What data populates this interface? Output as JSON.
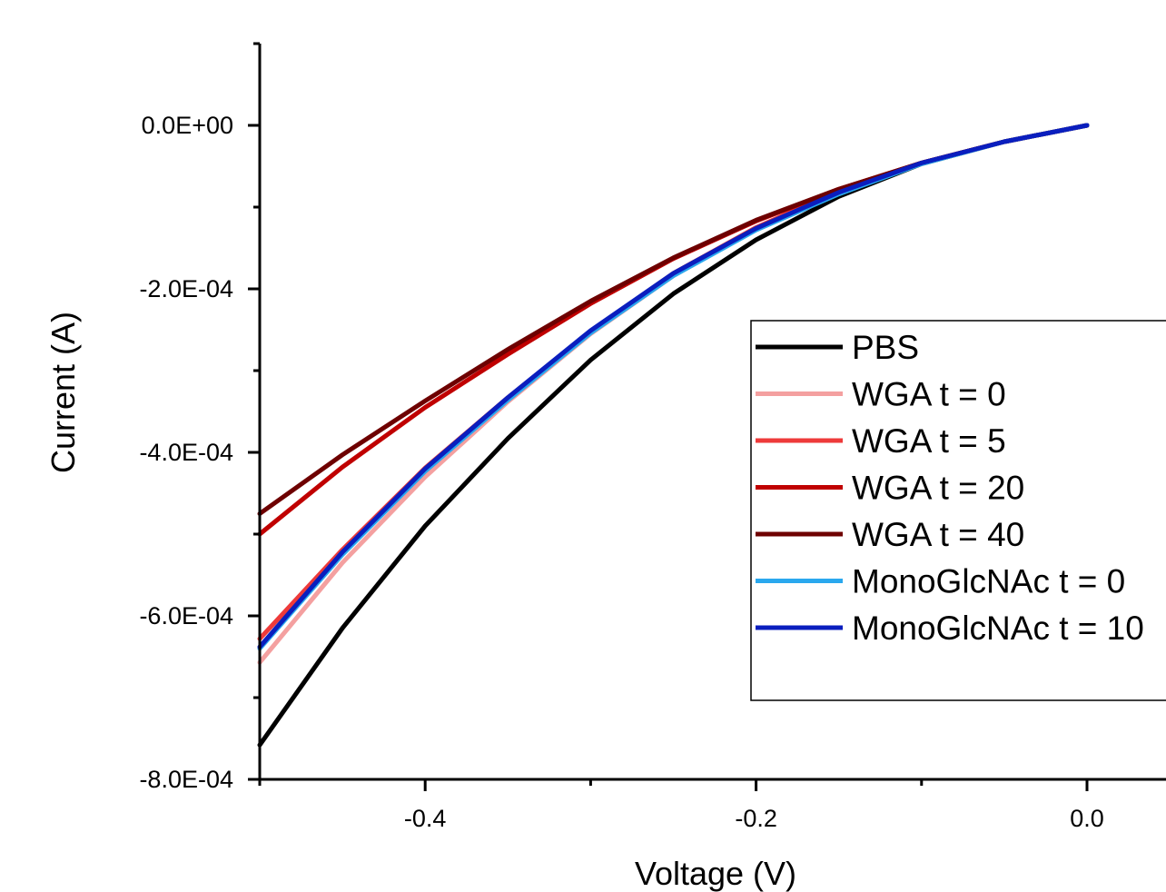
{
  "chart_data": {
    "type": "line",
    "xlabel": "Voltage (V)",
    "ylabel": "Current (A)",
    "xlim": [
      -0.5,
      0.0
    ],
    "ylim": [
      -0.0008,
      0.0001
    ],
    "x_ticks": [
      -0.4,
      -0.2,
      0.0
    ],
    "x_tick_labels": [
      "-0.4",
      "-0.2",
      "0.0"
    ],
    "y_ticks": [
      0.0,
      -0.0002,
      -0.0004,
      -0.0006,
      -0.0008
    ],
    "y_tick_labels": [
      "0.0E+00",
      "-2.0E-04",
      "-4.0E-04",
      "-6.0E-04",
      "-8.0E-04"
    ],
    "grid": false,
    "legend_position": "right",
    "x": [
      -0.5,
      -0.45,
      -0.4,
      -0.35,
      -0.3,
      -0.25,
      -0.2,
      -0.15,
      -0.1,
      -0.05,
      0.0
    ],
    "series": [
      {
        "name": "PBS",
        "color": "#000000",
        "values": [
          -0.000758,
          -0.000615,
          -0.00049,
          -0.000383,
          -0.000287,
          -0.000206,
          -0.00014,
          -8.7e-05,
          -4.7e-05,
          -2e-05,
          0.0
        ]
      },
      {
        "name": "WGA t = 0",
        "color": "#f4a0a0",
        "values": [
          -0.000657,
          -0.000535,
          -0.00043,
          -0.000338,
          -0.000255,
          -0.000184,
          -0.000127,
          -8.1e-05,
          -4.6e-05,
          -2e-05,
          0.0
        ]
      },
      {
        "name": "WGA t = 5",
        "color": "#ee3a3a",
        "values": [
          -0.000628,
          -0.000519,
          -0.000419,
          -0.000333,
          -0.000252,
          -0.000181,
          -0.000125,
          -8e-05,
          -4.6e-05,
          -2e-05,
          0.0
        ]
      },
      {
        "name": "WGA t = 20",
        "color": "#c00000",
        "values": [
          -0.0005,
          -0.000418,
          -0.000345,
          -0.00028,
          -0.000218,
          -0.000163,
          -0.000117,
          -7.8e-05,
          -4.6e-05,
          -2e-05,
          0.0
        ]
      },
      {
        "name": "WGA t = 40",
        "color": "#6e0000",
        "values": [
          -0.000475,
          -0.000403,
          -0.000337,
          -0.000274,
          -0.000215,
          -0.000162,
          -0.000116,
          -7.8e-05,
          -4.6e-05,
          -2e-05,
          0.0
        ]
      },
      {
        "name": "MonoGlcNAc t = 0",
        "color": "#2aa8ee",
        "values": [
          -0.00064,
          -0.000525,
          -0.000423,
          -0.000336,
          -0.000254,
          -0.000184,
          -0.000128,
          -8.4e-05,
          -4.7e-05,
          -2e-05,
          0.0
        ]
      },
      {
        "name": "MonoGlcNAc t = 10",
        "color": "#0a1ebe",
        "values": [
          -0.000638,
          -0.000522,
          -0.00042,
          -0.000333,
          -0.000251,
          -0.000181,
          -0.000126,
          -8.2e-05,
          -4.6e-05,
          -2e-05,
          0.0
        ]
      }
    ]
  }
}
